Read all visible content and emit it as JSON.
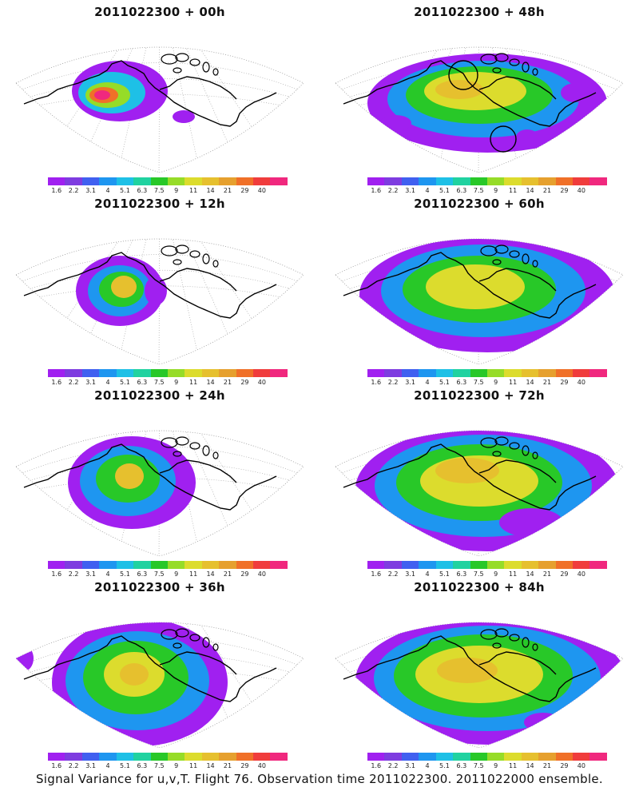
{
  "colorbar": {
    "colors": [
      "#a020f0",
      "#7e3ce0",
      "#4060f0",
      "#1e96f0",
      "#1ec0e6",
      "#20d2a0",
      "#28c828",
      "#96dc28",
      "#dcdc2d",
      "#e6c02e",
      "#e6a02e",
      "#f07028",
      "#f03c3c",
      "#f0287e"
    ],
    "labels": [
      "1.6",
      "2.2",
      "3.1",
      "4",
      "5.1",
      "6.3",
      "7.5",
      "9",
      "11",
      "14",
      "21",
      "29",
      "40"
    ]
  },
  "caption": "Signal Variance for u,v,T. Flight 76. Observation time 2011022300. 2011022000 ensemble.",
  "chart_data": [
    {
      "type": "heatmap",
      "title": "2011022300 + 00h",
      "variable": "u,v,T signal variance",
      "peak_level": "40",
      "levels": [
        "1.6",
        "2.2",
        "3.1",
        "4",
        "5.1",
        "6.3",
        "7.5",
        "9",
        "11",
        "14",
        "21",
        "29",
        "40"
      ]
    },
    {
      "type": "heatmap",
      "title": "2011022300 + 48h",
      "variable": "u,v,T signal variance",
      "peak_level": "11",
      "annotations": [
        "circle marker north",
        "circle marker south"
      ],
      "levels": [
        "1.6",
        "2.2",
        "3.1",
        "4",
        "5.1",
        "6.3",
        "7.5",
        "9",
        "11",
        "14",
        "21",
        "29",
        "40"
      ]
    },
    {
      "type": "heatmap",
      "title": "2011022300 + 12h",
      "variable": "u,v,T signal variance",
      "peak_level": "14",
      "levels": [
        "1.6",
        "2.2",
        "3.1",
        "4",
        "5.1",
        "6.3",
        "7.5",
        "9",
        "11",
        "14",
        "21",
        "29",
        "40"
      ]
    },
    {
      "type": "heatmap",
      "title": "2011022300 + 60h",
      "variable": "u,v,T signal variance",
      "peak_level": "11",
      "levels": [
        "1.6",
        "2.2",
        "3.1",
        "4",
        "5.1",
        "6.3",
        "7.5",
        "9",
        "11",
        "14",
        "21",
        "29",
        "40"
      ]
    },
    {
      "type": "heatmap",
      "title": "2011022300 + 24h",
      "variable": "u,v,T signal variance",
      "peak_level": "14",
      "levels": [
        "1.6",
        "2.2",
        "3.1",
        "4",
        "5.1",
        "6.3",
        "7.5",
        "9",
        "11",
        "14",
        "21",
        "29",
        "40"
      ]
    },
    {
      "type": "heatmap",
      "title": "2011022300 + 72h",
      "variable": "u,v,T signal variance",
      "peak_level": "11",
      "levels": [
        "1.6",
        "2.2",
        "3.1",
        "4",
        "5.1",
        "6.3",
        "7.5",
        "9",
        "11",
        "14",
        "21",
        "29",
        "40"
      ]
    },
    {
      "type": "heatmap",
      "title": "2011022300 + 36h",
      "variable": "u,v,T signal variance",
      "peak_level": "14",
      "levels": [
        "1.6",
        "2.2",
        "3.1",
        "4",
        "5.1",
        "6.3",
        "7.5",
        "9",
        "11",
        "14",
        "21",
        "29",
        "40"
      ]
    },
    {
      "type": "heatmap",
      "title": "2011022300 + 84h",
      "variable": "u,v,T signal variance",
      "peak_level": "11",
      "levels": [
        "1.6",
        "2.2",
        "3.1",
        "4",
        "5.1",
        "6.3",
        "7.5",
        "9",
        "11",
        "14",
        "21",
        "29",
        "40"
      ]
    }
  ]
}
